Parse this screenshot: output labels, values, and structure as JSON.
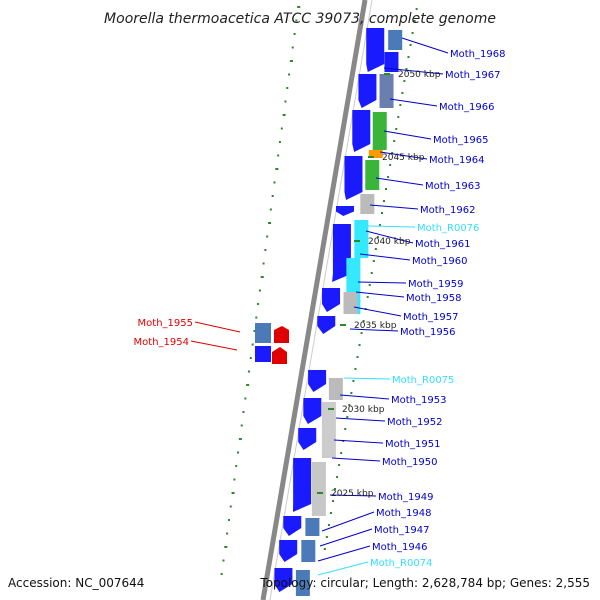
{
  "title": "Moorella thermoacetica ATCC 39073, complete genome",
  "accession": "Accession: NC_007644",
  "topology": "Topology: circular; Length: 2,628,784 bp; Genes: 2,555",
  "colors": {
    "cds": "#1a1aff",
    "rna": "#33e0ff",
    "other_strand": "#e00000",
    "connector": "#0000cc",
    "backbone": "#888888",
    "tick": "#2a8a2a"
  },
  "kbp_markers": [
    "2050 kbp",
    "2045 kbp",
    "2040 kbp",
    "2035 kbp",
    "2030 kbp",
    "2025 kbp"
  ],
  "genes": [
    {
      "name": "Moth_1968",
      "type": "cds"
    },
    {
      "name": "Moth_1967",
      "type": "cds"
    },
    {
      "name": "Moth_1966",
      "type": "cds"
    },
    {
      "name": "Moth_1965",
      "type": "cds"
    },
    {
      "name": "Moth_1964",
      "type": "cds"
    },
    {
      "name": "Moth_1963",
      "type": "cds"
    },
    {
      "name": "Moth_1962",
      "type": "cds"
    },
    {
      "name": "Moth_R0076",
      "type": "rna"
    },
    {
      "name": "Moth_1961",
      "type": "cds"
    },
    {
      "name": "Moth_1960",
      "type": "cds"
    },
    {
      "name": "Moth_1959",
      "type": "cds"
    },
    {
      "name": "Moth_1958",
      "type": "cds"
    },
    {
      "name": "Moth_1957",
      "type": "cds"
    },
    {
      "name": "Moth_1956",
      "type": "cds"
    },
    {
      "name": "Moth_1955",
      "type": "other_strand"
    },
    {
      "name": "Moth_1954",
      "type": "other_strand"
    },
    {
      "name": "Moth_R0075",
      "type": "rna"
    },
    {
      "name": "Moth_1953",
      "type": "cds"
    },
    {
      "name": "Moth_1952",
      "type": "cds"
    },
    {
      "name": "Moth_1951",
      "type": "cds"
    },
    {
      "name": "Moth_1950",
      "type": "cds"
    },
    {
      "name": "Moth_1949",
      "type": "cds"
    },
    {
      "name": "Moth_1948",
      "type": "cds"
    },
    {
      "name": "Moth_1947",
      "type": "cds"
    },
    {
      "name": "Moth_1946",
      "type": "cds"
    },
    {
      "name": "Moth_R0074",
      "type": "rna"
    }
  ]
}
